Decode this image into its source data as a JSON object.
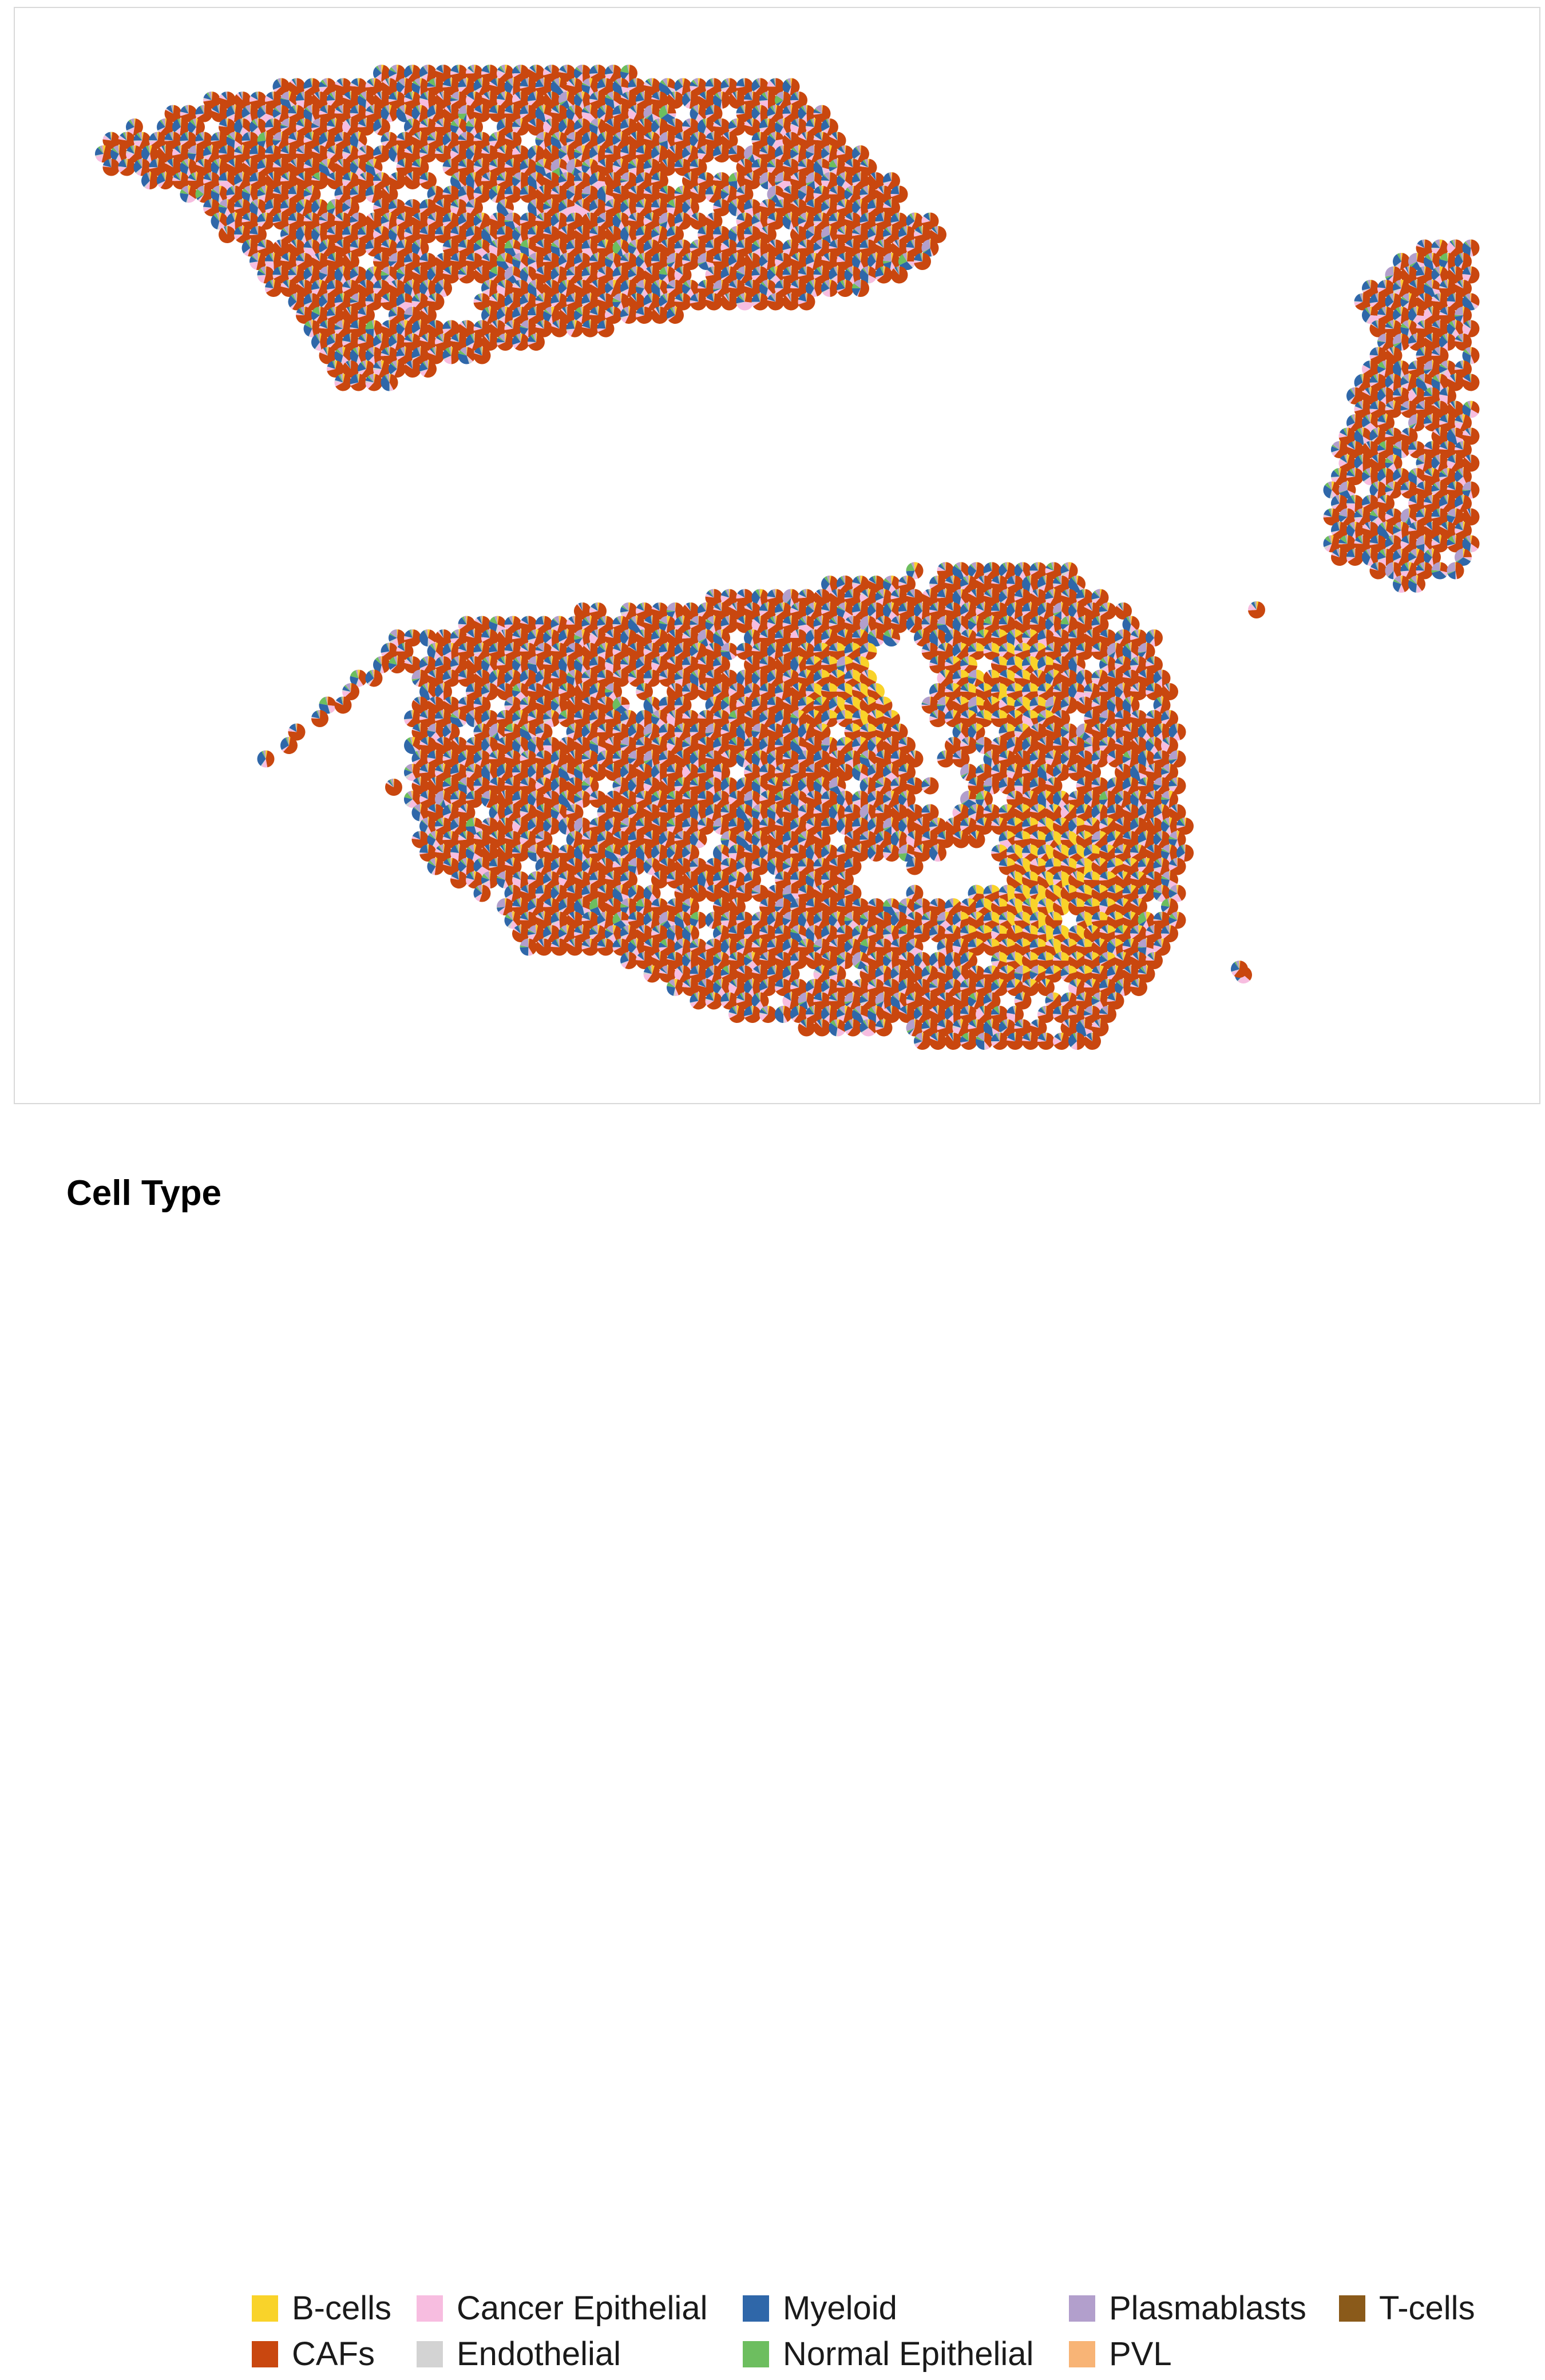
{
  "chart_data": {
    "type": "spatial-pie-scatter",
    "title": "",
    "xlabel": "",
    "ylabel": "",
    "axes_visible": false,
    "grid": false,
    "legend_position": "bottom",
    "legend": {
      "title": "Cell Type",
      "entries": [
        {
          "label": "B-cells",
          "color": "#F9D32A"
        },
        {
          "label": "CAFs",
          "color": "#C9470F"
        },
        {
          "label": "Cancer Epithelial",
          "color": "#F7BDE0"
        },
        {
          "label": "Endothelial",
          "color": "#D3D3D3"
        },
        {
          "label": "Myeloid",
          "color": "#2F67A9"
        },
        {
          "label": "Normal Epithelial",
          "color": "#6DBE5F"
        },
        {
          "label": "Plasmablasts",
          "color": "#B29FCC"
        },
        {
          "label": "PVL",
          "color": "#F8B476"
        },
        {
          "label": "T-cells",
          "color": "#8A5A1A"
        }
      ]
    },
    "regions": [
      {
        "name": "upper-left tissue section",
        "spot_count_approx": 520,
        "dominant": "CAFs",
        "secondary": [
          "Myeloid",
          "Cancer Epithelial",
          "Normal Epithelial"
        ]
      },
      {
        "name": "right tissue section",
        "spot_count_approx": 110,
        "dominant": "CAFs",
        "secondary": [
          "Myeloid",
          "Plasmablasts"
        ]
      },
      {
        "name": "lower tissue section",
        "spot_count_approx": 1000,
        "dominant": "CAFs",
        "secondary": [
          "Myeloid",
          "Plasmablasts",
          "Cancer Epithelial",
          "B-cells"
        ]
      }
    ],
    "typical_proportions": {
      "CAFs": 0.62,
      "Myeloid": 0.18,
      "Cancer Epithelial": 0.07,
      "Plasmablasts": 0.05,
      "Normal Epithelial": 0.03,
      "Endothelial": 0.02,
      "B-cells": 0.02,
      "PVL": 0.01,
      "T-cells": 0.0
    }
  }
}
